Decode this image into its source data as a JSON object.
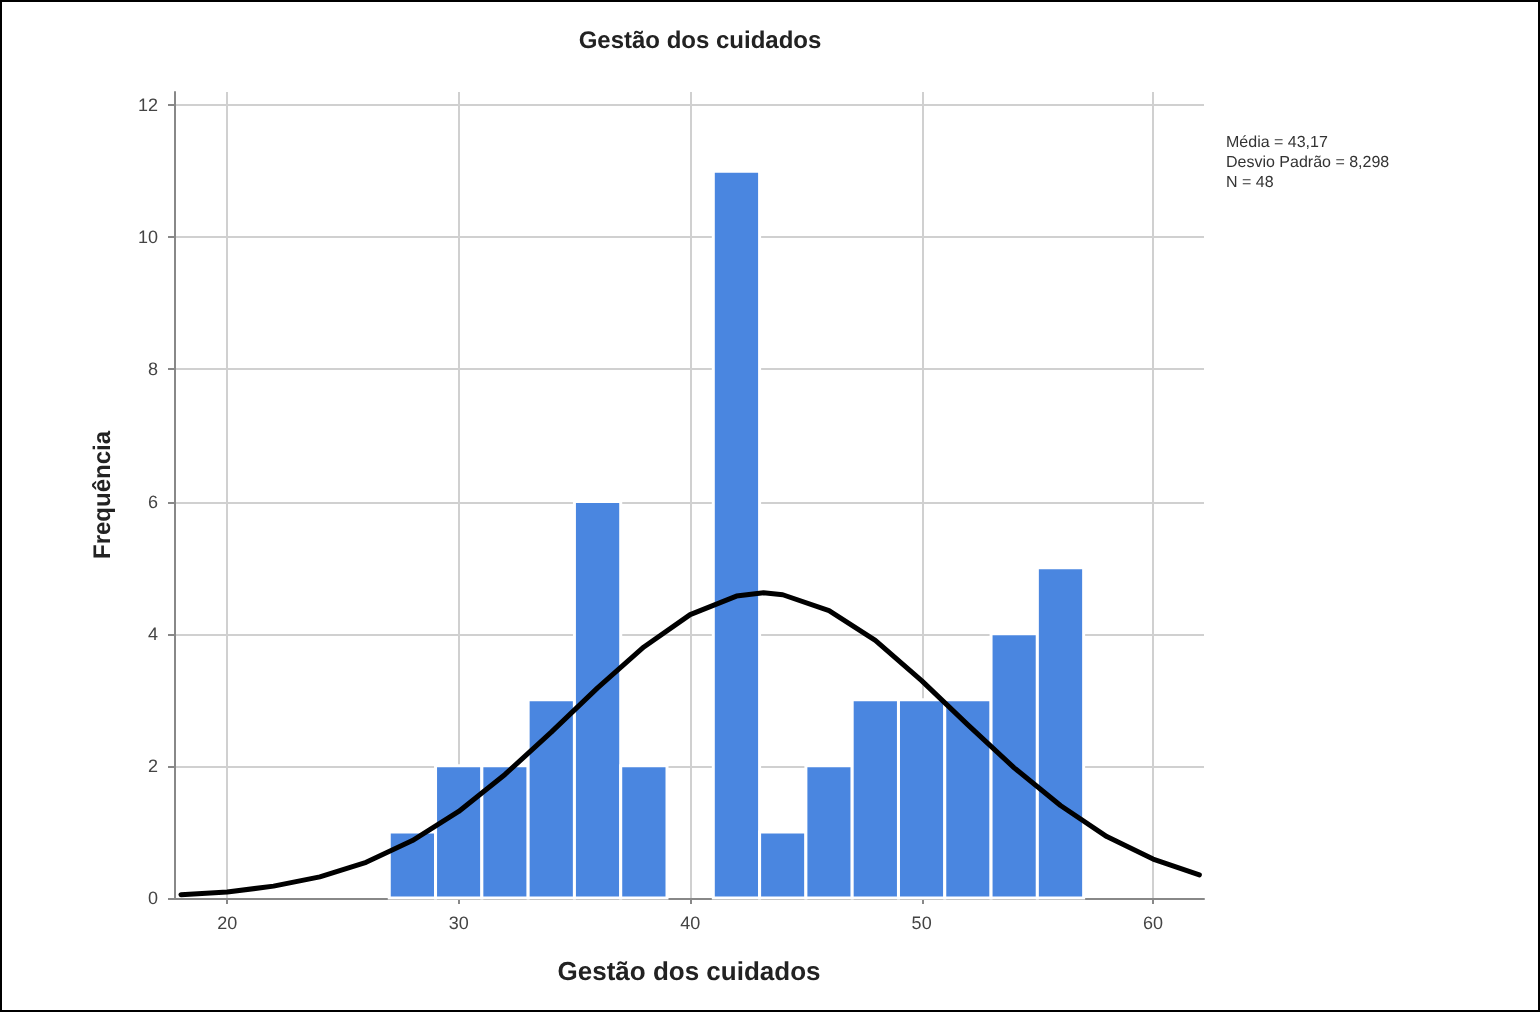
{
  "chart_data": {
    "type": "histogram",
    "title": "Gestão dos cuidados",
    "xlabel": "Gestão dos cuidados",
    "ylabel": "Frequência",
    "bins": [
      27,
      29,
      31,
      33,
      35,
      37,
      39,
      41,
      43,
      45,
      47,
      49,
      51,
      53,
      55,
      57
    ],
    "values": [
      1,
      2,
      2,
      3,
      6,
      2,
      0,
      11,
      1,
      2,
      3,
      3,
      3,
      4,
      5
    ],
    "color": "#4a86e0",
    "series": [
      {
        "type": "line",
        "color": "#000000",
        "x": [
          18,
          20,
          22,
          24,
          26,
          28,
          30,
          32,
          34,
          36,
          38,
          40,
          42,
          43.17,
          44,
          46,
          48,
          50,
          52,
          54,
          56,
          58,
          60,
          62
        ],
        "values": [
          0.05,
          0.09,
          0.18,
          0.32,
          0.54,
          0.87,
          1.31,
          1.87,
          2.51,
          3.18,
          3.8,
          4.29,
          4.57,
          4.62,
          4.59,
          4.35,
          3.9,
          3.29,
          2.62,
          1.97,
          1.4,
          0.93,
          0.59,
          0.35
        ]
      }
    ],
    "xlim": [
      17.7,
      62.2
    ],
    "xticks": [
      20,
      30,
      40,
      50,
      60
    ],
    "ylim": [
      0,
      12.2
    ],
    "yticks": [
      0,
      2,
      4,
      6,
      8,
      10,
      12
    ],
    "grid": true,
    "annotations": [
      "Média = 43,17",
      "Desvio Padrão = 8,298",
      "N = 48"
    ]
  }
}
